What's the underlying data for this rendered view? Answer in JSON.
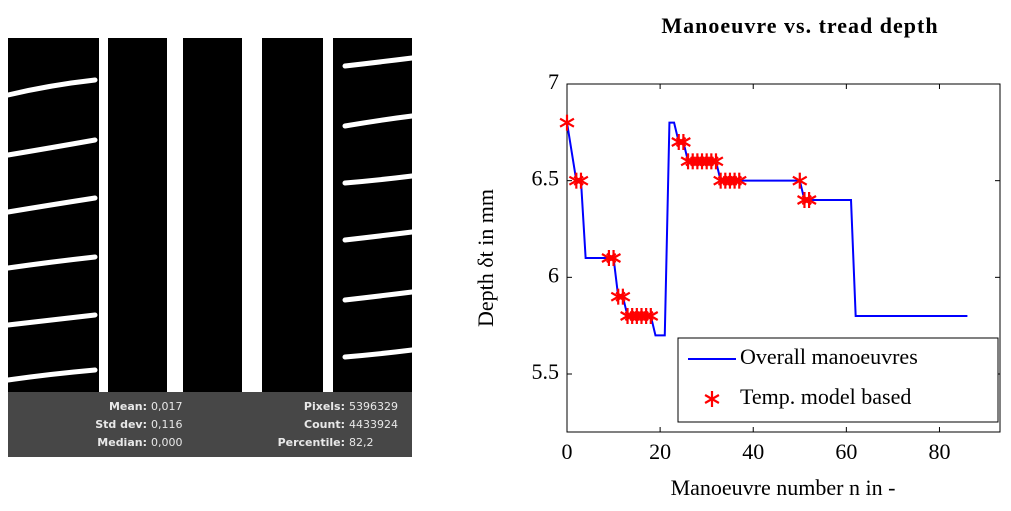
{
  "panel": {
    "stats": [
      [
        {
          "label": "Mean:",
          "value": "0,017"
        },
        {
          "label": "Pixels:",
          "value": "5396329"
        }
      ],
      [
        {
          "label": "Std dev:",
          "value": "0,116"
        },
        {
          "label": "Count:",
          "value": "4433924"
        }
      ],
      [
        {
          "label": "Median:",
          "value": "0,000"
        },
        {
          "label": "Percentile:",
          "value": "82,2"
        }
      ]
    ]
  },
  "chart_data": {
    "type": "line",
    "title": "Manoeuvre vs. tread depth",
    "xlabel": "Manoeuvre number n in -",
    "ylabel": "Depth δt in mm",
    "xlim": [
      0,
      93
    ],
    "ylim": [
      5.2,
      7
    ],
    "xticks": [
      0,
      20,
      40,
      60,
      80
    ],
    "yticks": [
      5.5,
      6,
      6.5,
      7
    ],
    "legend": "lower right",
    "series": [
      {
        "name": "Overall manoeuvres",
        "type": "line",
        "color": "#0000ff",
        "x": [
          0,
          2,
          3,
          4,
          9,
          10,
          11,
          12,
          13,
          18,
          19,
          21,
          22,
          23,
          24,
          25,
          26,
          31,
          32,
          33,
          50,
          51,
          61,
          62,
          86
        ],
        "values": [
          6.8,
          6.5,
          6.5,
          6.1,
          6.1,
          6.1,
          5.9,
          5.9,
          5.8,
          5.8,
          5.7,
          5.7,
          6.8,
          6.8,
          6.7,
          6.7,
          6.6,
          6.6,
          6.6,
          6.5,
          6.5,
          6.4,
          6.4,
          5.8,
          5.8
        ]
      },
      {
        "name": "Temp. model based",
        "type": "scatter",
        "color": "#ff0000",
        "x": [
          0,
          2,
          3,
          9,
          10,
          11,
          12,
          13,
          14,
          15,
          16,
          17,
          18,
          24,
          25,
          26,
          27,
          28,
          29,
          30,
          31,
          32,
          33,
          34,
          35,
          36,
          37,
          50,
          51,
          52
        ],
        "values": [
          6.8,
          6.5,
          6.5,
          6.1,
          6.1,
          5.9,
          5.9,
          5.8,
          5.8,
          5.8,
          5.8,
          5.8,
          5.8,
          6.7,
          6.7,
          6.6,
          6.6,
          6.6,
          6.6,
          6.6,
          6.6,
          6.6,
          6.5,
          6.5,
          6.5,
          6.5,
          6.5,
          6.5,
          6.4,
          6.4
        ]
      }
    ]
  }
}
